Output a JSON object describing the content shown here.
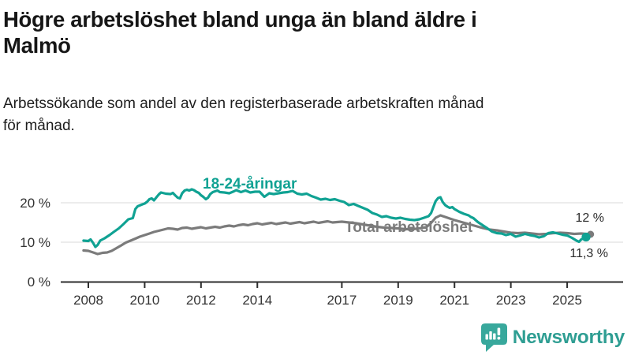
{
  "header": {
    "title": "Högre arbetslöshet bland unga än bland äldre i Malmö",
    "title_lines": [
      "Högre arbetslöshet bland unga än bland äldre i",
      "Malmö"
    ],
    "subtitle": "Arbetssökande som andel av den registerbaserade arbetskraften månad för månad.",
    "subtitle_lines": [
      "Arbetssökande som andel av den registerbaserade arbetskraften månad",
      "för månad."
    ]
  },
  "colors": {
    "accent_teal": "#10a293",
    "series_gray": "#7b7b7b",
    "gridline": "#d9d9d9",
    "axis": "#2e2e2e",
    "value_label": "#2b2b2b",
    "logo_teal": "#2f9e93"
  },
  "chart_data": {
    "type": "line",
    "title": "Högre arbetslöshet bland unga än bland äldre i Malmö",
    "subtitle": "Arbetssökande som andel av den registerbaserade arbetskraften månad för månad.",
    "xlabel": "",
    "ylabel": "",
    "xlim": [
      2007.8,
      2026.2
    ],
    "ylim": [
      0,
      26
    ],
    "grid": "horizontal",
    "legend_position": "inline-labels-on-lines",
    "x_ticks": [
      {
        "year": 2008,
        "label": "2008"
      },
      {
        "year": 2010,
        "label": "2010"
      },
      {
        "year": 2012,
        "label": "2012"
      },
      {
        "year": 2014,
        "label": "2014"
      },
      {
        "year": 2017,
        "label": "2017"
      },
      {
        "year": 2019,
        "label": "2019"
      },
      {
        "year": 2021,
        "label": "2021"
      },
      {
        "year": 2023,
        "label": "2023"
      },
      {
        "year": 2025,
        "label": "2025"
      }
    ],
    "y_ticks": [
      {
        "value": 0,
        "label": "0 %"
      },
      {
        "value": 10,
        "label": "10 %"
      },
      {
        "value": 20,
        "label": "20 %"
      }
    ],
    "series": [
      {
        "name": "18-24-åringar",
        "color": "#10a293",
        "end_value": 11.3,
        "end_label": "11,3 %",
        "points": [
          [
            2007.83,
            10.4
          ],
          [
            2008.0,
            10.3
          ],
          [
            2008.08,
            10.7
          ],
          [
            2008.17,
            9.8
          ],
          [
            2008.25,
            8.8
          ],
          [
            2008.33,
            9.3
          ],
          [
            2008.42,
            10.4
          ],
          [
            2008.58,
            11.0
          ],
          [
            2008.75,
            11.8
          ],
          [
            2008.92,
            12.7
          ],
          [
            2009.08,
            13.5
          ],
          [
            2009.25,
            14.6
          ],
          [
            2009.42,
            15.8
          ],
          [
            2009.58,
            16.1
          ],
          [
            2009.67,
            18.4
          ],
          [
            2009.75,
            19.1
          ],
          [
            2009.92,
            19.6
          ],
          [
            2010.0,
            19.8
          ],
          [
            2010.08,
            20.2
          ],
          [
            2010.17,
            20.9
          ],
          [
            2010.25,
            21.1
          ],
          [
            2010.33,
            20.6
          ],
          [
            2010.42,
            21.4
          ],
          [
            2010.5,
            22.1
          ],
          [
            2010.58,
            22.6
          ],
          [
            2010.75,
            22.3
          ],
          [
            2010.92,
            22.2
          ],
          [
            2011.0,
            22.5
          ],
          [
            2011.08,
            21.9
          ],
          [
            2011.17,
            21.3
          ],
          [
            2011.25,
            21.1
          ],
          [
            2011.33,
            22.4
          ],
          [
            2011.42,
            23.1
          ],
          [
            2011.5,
            23.3
          ],
          [
            2011.58,
            23.1
          ],
          [
            2011.67,
            23.4
          ],
          [
            2011.75,
            23.2
          ],
          [
            2011.83,
            22.8
          ],
          [
            2011.92,
            22.5
          ],
          [
            2012.0,
            21.9
          ],
          [
            2012.08,
            21.5
          ],
          [
            2012.17,
            20.9
          ],
          [
            2012.25,
            21.3
          ],
          [
            2012.33,
            22.2
          ],
          [
            2012.42,
            22.7
          ],
          [
            2012.5,
            22.9
          ],
          [
            2012.58,
            23.1
          ],
          [
            2012.67,
            22.7
          ],
          [
            2012.83,
            22.6
          ],
          [
            2013.0,
            22.4
          ],
          [
            2013.17,
            22.9
          ],
          [
            2013.25,
            23.2
          ],
          [
            2013.42,
            22.7
          ],
          [
            2013.58,
            23.1
          ],
          [
            2013.75,
            22.6
          ],
          [
            2013.92,
            22.8
          ],
          [
            2014.08,
            22.8
          ],
          [
            2014.25,
            21.5
          ],
          [
            2014.42,
            22.4
          ],
          [
            2014.58,
            22.2
          ],
          [
            2014.75,
            22.4
          ],
          [
            2014.92,
            22.6
          ],
          [
            2015.08,
            22.7
          ],
          [
            2015.25,
            23.0
          ],
          [
            2015.42,
            22.3
          ],
          [
            2015.58,
            22.1
          ],
          [
            2015.75,
            22.3
          ],
          [
            2015.92,
            21.7
          ],
          [
            2016.08,
            21.3
          ],
          [
            2016.25,
            20.8
          ],
          [
            2016.42,
            21.0
          ],
          [
            2016.58,
            20.7
          ],
          [
            2016.75,
            20.9
          ],
          [
            2016.92,
            20.5
          ],
          [
            2017.08,
            20.2
          ],
          [
            2017.25,
            19.4
          ],
          [
            2017.42,
            19.7
          ],
          [
            2017.58,
            19.2
          ],
          [
            2017.75,
            18.7
          ],
          [
            2017.92,
            18.2
          ],
          [
            2018.08,
            17.4
          ],
          [
            2018.25,
            17.0
          ],
          [
            2018.42,
            16.4
          ],
          [
            2018.58,
            16.6
          ],
          [
            2018.75,
            16.2
          ],
          [
            2018.92,
            16.0
          ],
          [
            2019.08,
            16.2
          ],
          [
            2019.25,
            15.9
          ],
          [
            2019.42,
            15.7
          ],
          [
            2019.58,
            15.6
          ],
          [
            2019.75,
            15.8
          ],
          [
            2019.92,
            16.2
          ],
          [
            2020.08,
            16.6
          ],
          [
            2020.17,
            17.4
          ],
          [
            2020.25,
            18.9
          ],
          [
            2020.33,
            20.4
          ],
          [
            2020.42,
            21.2
          ],
          [
            2020.5,
            21.4
          ],
          [
            2020.58,
            20.2
          ],
          [
            2020.67,
            19.4
          ],
          [
            2020.75,
            19.0
          ],
          [
            2020.83,
            18.7
          ],
          [
            2020.92,
            18.9
          ],
          [
            2021.0,
            18.4
          ],
          [
            2021.17,
            17.7
          ],
          [
            2021.33,
            17.2
          ],
          [
            2021.5,
            16.8
          ],
          [
            2021.58,
            16.4
          ],
          [
            2021.67,
            16.1
          ],
          [
            2021.83,
            15.1
          ],
          [
            2022.0,
            14.3
          ],
          [
            2022.17,
            13.5
          ],
          [
            2022.33,
            12.7
          ],
          [
            2022.5,
            12.3
          ],
          [
            2022.67,
            12.2
          ],
          [
            2022.83,
            11.8
          ],
          [
            2023.0,
            12.1
          ],
          [
            2023.17,
            11.4
          ],
          [
            2023.33,
            11.7
          ],
          [
            2023.5,
            12.1
          ],
          [
            2023.67,
            11.8
          ],
          [
            2023.83,
            11.6
          ],
          [
            2024.0,
            11.2
          ],
          [
            2024.17,
            11.5
          ],
          [
            2024.33,
            12.3
          ],
          [
            2024.5,
            12.5
          ],
          [
            2024.67,
            12.2
          ],
          [
            2024.83,
            11.9
          ],
          [
            2025.0,
            11.7
          ],
          [
            2025.17,
            11.1
          ],
          [
            2025.33,
            10.4
          ],
          [
            2025.42,
            10.1
          ],
          [
            2025.5,
            10.7
          ],
          [
            2025.67,
            11.3
          ]
        ]
      },
      {
        "name": "Total arbetslöshet",
        "color": "#7b7b7b",
        "end_value": 12.0,
        "end_label": "12 %",
        "points": [
          [
            2007.83,
            7.9
          ],
          [
            2008.0,
            7.8
          ],
          [
            2008.17,
            7.4
          ],
          [
            2008.33,
            7.0
          ],
          [
            2008.5,
            7.3
          ],
          [
            2008.67,
            7.4
          ],
          [
            2008.83,
            7.8
          ],
          [
            2009.0,
            8.5
          ],
          [
            2009.17,
            9.2
          ],
          [
            2009.33,
            9.9
          ],
          [
            2009.5,
            10.4
          ],
          [
            2009.67,
            10.9
          ],
          [
            2009.83,
            11.4
          ],
          [
            2010.0,
            11.8
          ],
          [
            2010.17,
            12.2
          ],
          [
            2010.33,
            12.6
          ],
          [
            2010.5,
            12.9
          ],
          [
            2010.67,
            13.2
          ],
          [
            2010.83,
            13.5
          ],
          [
            2011.0,
            13.4
          ],
          [
            2011.17,
            13.2
          ],
          [
            2011.33,
            13.6
          ],
          [
            2011.5,
            13.7
          ],
          [
            2011.67,
            13.4
          ],
          [
            2011.83,
            13.6
          ],
          [
            2012.0,
            13.8
          ],
          [
            2012.17,
            13.5
          ],
          [
            2012.33,
            13.7
          ],
          [
            2012.5,
            13.9
          ],
          [
            2012.67,
            13.7
          ],
          [
            2012.83,
            14.0
          ],
          [
            2013.0,
            14.2
          ],
          [
            2013.17,
            14.0
          ],
          [
            2013.33,
            14.3
          ],
          [
            2013.5,
            14.5
          ],
          [
            2013.67,
            14.3
          ],
          [
            2013.83,
            14.6
          ],
          [
            2014.0,
            14.8
          ],
          [
            2014.17,
            14.5
          ],
          [
            2014.33,
            14.7
          ],
          [
            2014.5,
            14.9
          ],
          [
            2014.67,
            14.6
          ],
          [
            2014.83,
            14.8
          ],
          [
            2015.0,
            15.0
          ],
          [
            2015.17,
            14.7
          ],
          [
            2015.33,
            14.9
          ],
          [
            2015.5,
            15.1
          ],
          [
            2015.67,
            14.8
          ],
          [
            2015.83,
            15.0
          ],
          [
            2016.0,
            15.2
          ],
          [
            2016.17,
            14.9
          ],
          [
            2016.33,
            15.1
          ],
          [
            2016.5,
            15.3
          ],
          [
            2016.67,
            15.0
          ],
          [
            2016.83,
            15.1
          ],
          [
            2017.0,
            15.2
          ],
          [
            2017.25,
            15.0
          ],
          [
            2017.5,
            14.8
          ],
          [
            2017.75,
            14.5
          ],
          [
            2018.0,
            14.2
          ],
          [
            2018.25,
            13.9
          ],
          [
            2018.5,
            13.7
          ],
          [
            2018.75,
            13.6
          ],
          [
            2019.0,
            13.5
          ],
          [
            2019.25,
            13.3
          ],
          [
            2019.5,
            13.3
          ],
          [
            2019.75,
            13.5
          ],
          [
            2020.0,
            13.8
          ],
          [
            2020.17,
            14.9
          ],
          [
            2020.33,
            16.2
          ],
          [
            2020.5,
            16.8
          ],
          [
            2020.67,
            16.4
          ],
          [
            2020.83,
            16.0
          ],
          [
            2021.0,
            15.6
          ],
          [
            2021.25,
            15.1
          ],
          [
            2021.5,
            14.6
          ],
          [
            2021.75,
            14.1
          ],
          [
            2022.0,
            13.6
          ],
          [
            2022.25,
            13.2
          ],
          [
            2022.5,
            13.0
          ],
          [
            2022.75,
            12.7
          ],
          [
            2023.0,
            12.4
          ],
          [
            2023.25,
            12.3
          ],
          [
            2023.5,
            12.4
          ],
          [
            2023.75,
            12.2
          ],
          [
            2024.0,
            12.0
          ],
          [
            2024.25,
            12.1
          ],
          [
            2024.5,
            12.3
          ],
          [
            2024.75,
            12.4
          ],
          [
            2025.0,
            12.3
          ],
          [
            2025.25,
            12.1
          ],
          [
            2025.5,
            12.2
          ],
          [
            2025.83,
            12.0
          ]
        ]
      }
    ]
  },
  "footer": {
    "brand": "Newsworthy"
  }
}
